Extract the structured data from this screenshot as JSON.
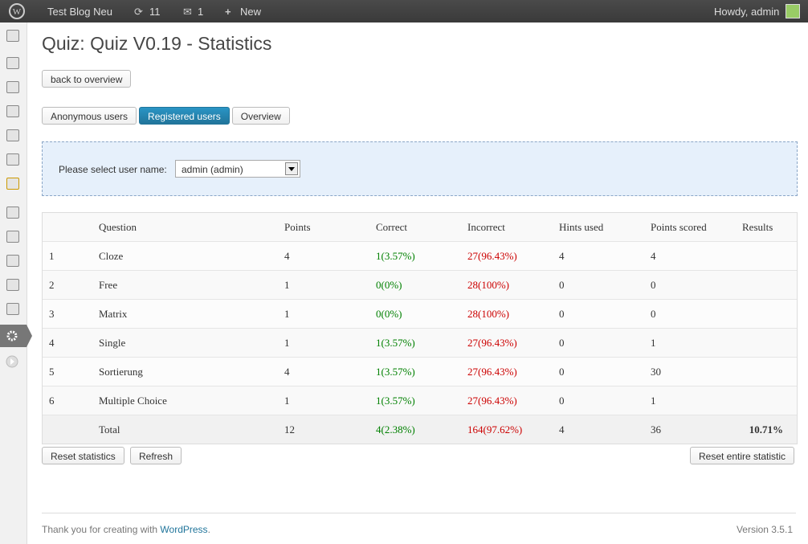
{
  "admin_bar": {
    "site": "Test Blog Neu",
    "updates": "11",
    "comments": "1",
    "new": "New",
    "howdy": "Howdy, admin"
  },
  "page": {
    "title": "Quiz: Quiz V0.19 - Statistics",
    "back_button": "back to overview",
    "tabs": [
      "Anonymous users",
      "Registered users",
      "Overview"
    ],
    "active_tab": 1,
    "select_label": "Please select user name:",
    "select_value": "admin (admin)"
  },
  "table": {
    "headers": [
      "Question",
      "Points",
      "Correct",
      "Incorrect",
      "Hints used",
      "Points scored",
      "Results"
    ],
    "rows": [
      [
        "1",
        "Cloze",
        "4",
        "1(3.57%)",
        "27(96.43%)",
        "4",
        "4"
      ],
      [
        "2",
        "Free",
        "1",
        "0(0%)",
        "28(100%)",
        "0",
        "0"
      ],
      [
        "3",
        "Matrix",
        "1",
        "0(0%)",
        "28(100%)",
        "0",
        "0"
      ],
      [
        "4",
        "Single",
        "1",
        "1(3.57%)",
        "27(96.43%)",
        "0",
        "1"
      ],
      [
        "5",
        "Sortierung",
        "4",
        "1(3.57%)",
        "27(96.43%)",
        "0",
        "30"
      ],
      [
        "6",
        "Multiple Choice",
        "1",
        "1(3.57%)",
        "27(96.43%)",
        "0",
        "1"
      ]
    ],
    "total": [
      "Total",
      "12",
      "4(2.38%)",
      "164(97.62%)",
      "4",
      "36",
      "10.71%"
    ]
  },
  "buttons": {
    "reset": "Reset statistics",
    "refresh": "Refresh",
    "reset_all": "Reset entire statistic"
  },
  "footer": {
    "thanks": "Thank you for creating with",
    "link": "WordPress",
    "version": "Version 3.5.1"
  }
}
